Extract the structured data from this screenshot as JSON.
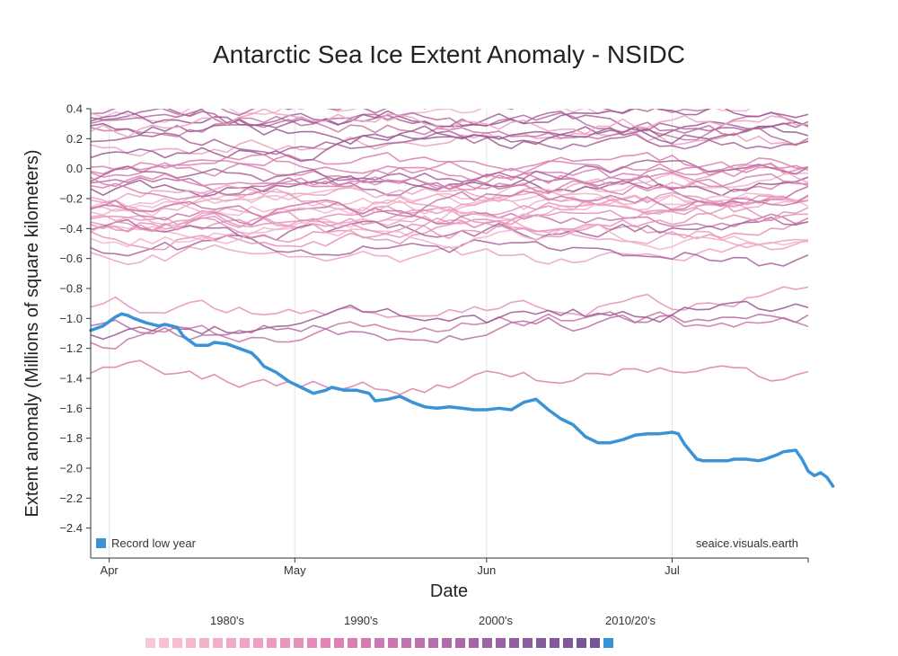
{
  "chart_data": {
    "type": "line",
    "title": "Antarctic Sea Ice Extent Anomaly - NSIDC",
    "xlabel": "Date",
    "ylabel": "Extent anomaly (Millions of square kilometers)",
    "x_range": [
      "Mar 29",
      "Jul 23"
    ],
    "x_ticks": [
      {
        "label": "Apr",
        "date": "Apr 1"
      },
      {
        "label": "May",
        "date": "May 1"
      },
      {
        "label": "Jun",
        "date": "Jun 1"
      },
      {
        "label": "Jul",
        "date": "Jul 1"
      }
    ],
    "ylim": [
      -2.6,
      0.4
    ],
    "y_ticks": [
      0.4,
      0.2,
      0.0,
      -0.2,
      -0.4,
      -0.6,
      -0.8,
      -1.0,
      -1.2,
      -1.4,
      -1.6,
      -1.8,
      -2.0,
      -2.2,
      -2.4
    ],
    "y_tick_labels": [
      "0.4",
      "0.2",
      "0.0",
      "−0.2",
      "−0.4",
      "−0.6",
      "−0.8",
      "−1.0",
      "−1.2",
      "−1.4",
      "−1.6",
      "−1.8",
      "−2.0",
      "−2.2",
      "−2.4"
    ],
    "grid": true,
    "legend": {
      "label": "Record low year",
      "color": "#3a93d6",
      "placement": "bottom-left"
    },
    "source_note": "seaice.visuals.earth",
    "highlight_series": {
      "color": "#3a93d6",
      "points": [
        [
          "Mar 29",
          -1.08
        ],
        [
          "Mar 31",
          -1.05
        ],
        [
          "Apr 1",
          -1.02
        ],
        [
          "Apr 2",
          -0.99
        ],
        [
          "Apr 3",
          -0.97
        ],
        [
          "Apr 4",
          -0.98
        ],
        [
          "Apr 5",
          -1.0
        ],
        [
          "Apr 7",
          -1.03
        ],
        [
          "Apr 9",
          -1.05
        ],
        [
          "Apr 10",
          -1.04
        ],
        [
          "Apr 12",
          -1.06
        ],
        [
          "Apr 13",
          -1.12
        ],
        [
          "Apr 15",
          -1.18
        ],
        [
          "Apr 17",
          -1.18
        ],
        [
          "Apr 18",
          -1.16
        ],
        [
          "Apr 20",
          -1.17
        ],
        [
          "Apr 22",
          -1.2
        ],
        [
          "Apr 24",
          -1.23
        ],
        [
          "Apr 25",
          -1.27
        ],
        [
          "Apr 26",
          -1.32
        ],
        [
          "Apr 28",
          -1.36
        ],
        [
          "Apr 30",
          -1.42
        ],
        [
          "May 2",
          -1.46
        ],
        [
          "May 4",
          -1.5
        ],
        [
          "May 6",
          -1.48
        ],
        [
          "May 7",
          -1.46
        ],
        [
          "May 9",
          -1.48
        ],
        [
          "May 11",
          -1.48
        ],
        [
          "May 13",
          -1.5
        ],
        [
          "May 14",
          -1.55
        ],
        [
          "May 16",
          -1.54
        ],
        [
          "May 18",
          -1.52
        ],
        [
          "May 20",
          -1.56
        ],
        [
          "May 22",
          -1.59
        ],
        [
          "May 24",
          -1.6
        ],
        [
          "May 26",
          -1.59
        ],
        [
          "May 28",
          -1.6
        ],
        [
          "May 30",
          -1.61
        ],
        [
          "Jun 1",
          -1.61
        ],
        [
          "Jun 3",
          -1.6
        ],
        [
          "Jun 5",
          -1.61
        ],
        [
          "Jun 7",
          -1.56
        ],
        [
          "Jun 9",
          -1.54
        ],
        [
          "Jun 11",
          -1.61
        ],
        [
          "Jun 13",
          -1.67
        ],
        [
          "Jun 15",
          -1.71
        ],
        [
          "Jun 17",
          -1.79
        ],
        [
          "Jun 19",
          -1.83
        ],
        [
          "Jun 21",
          -1.83
        ],
        [
          "Jun 23",
          -1.81
        ],
        [
          "Jun 25",
          -1.78
        ],
        [
          "Jun 27",
          -1.77
        ],
        [
          "Jun 29",
          -1.77
        ],
        [
          "Jul 1",
          -1.76
        ],
        [
          "Jul 2",
          -1.77
        ],
        [
          "Jul 3",
          -1.84
        ],
        [
          "Jul 5",
          -1.94
        ],
        [
          "Jul 6",
          -1.95
        ],
        [
          "Jul 8",
          -1.95
        ],
        [
          "Jul 10",
          -1.95
        ],
        [
          "Jul 11",
          -1.94
        ],
        [
          "Jul 13",
          -1.94
        ],
        [
          "Jul 15",
          -1.95
        ],
        [
          "Jul 16",
          -1.94
        ],
        [
          "Jul 18",
          -1.91
        ],
        [
          "Jul 19",
          -1.89
        ],
        [
          "Jul 21",
          -1.88
        ],
        [
          "Jul 22",
          -1.94
        ],
        [
          "Jul 23",
          -2.02
        ],
        [
          "Jul 24",
          -2.05
        ],
        [
          "Jul 25",
          -2.03
        ],
        [
          "Jul 26",
          -2.06
        ],
        [
          "Jul 27",
          -2.12
        ]
      ]
    },
    "background_series_count": 44,
    "background_colors": [
      "#f2b2cc",
      "#eca0c0",
      "#e590b8",
      "#d97eae",
      "#c874a6",
      "#b76ba0",
      "#a86099",
      "#9a5891"
    ],
    "decade_labels": [
      "1980's",
      "1990's",
      "2000's",
      "2010/20's"
    ],
    "color_scale": [
      "#f7c6d8",
      "#f6c1d5",
      "#f5bcd3",
      "#f4b7d0",
      "#f3b3cd",
      "#f2aecb",
      "#f1a9c8",
      "#f0a4c5",
      "#ee9fc3",
      "#ec9ac0",
      "#ea95be",
      "#e890bc",
      "#e58bb9",
      "#e286b7",
      "#de82b5",
      "#d97fb4",
      "#d47bb2",
      "#ce78b1",
      "#c875b0",
      "#c272ae",
      "#bc70ad",
      "#b66dab",
      "#b06baa",
      "#aa69a9",
      "#a466a7",
      "#9e64a6",
      "#9862a4",
      "#9260a2",
      "#8c5ea0",
      "#875c9e",
      "#825a9c",
      "#7d589a",
      "#785698",
      "#745597",
      "#3a93d6"
    ]
  }
}
